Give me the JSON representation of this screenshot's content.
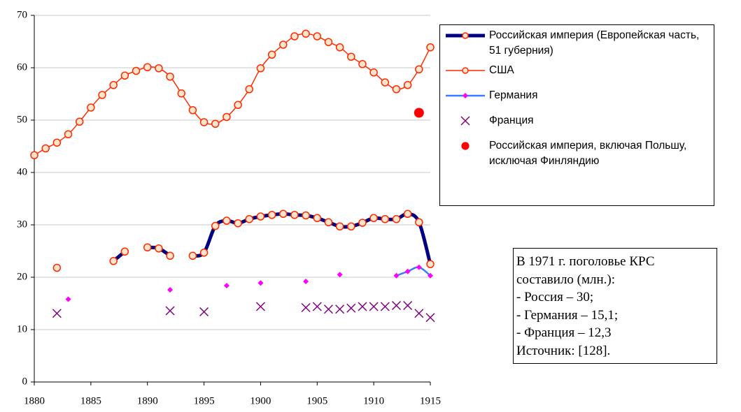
{
  "chart_data": {
    "type": "line",
    "x": [
      1880,
      1881,
      1882,
      1883,
      1884,
      1885,
      1886,
      1887,
      1888,
      1889,
      1890,
      1891,
      1892,
      1893,
      1894,
      1895,
      1896,
      1897,
      1898,
      1899,
      1900,
      1901,
      1902,
      1903,
      1904,
      1905,
      1906,
      1907,
      1908,
      1909,
      1910,
      1911,
      1912,
      1913,
      1914,
      1915
    ],
    "xlim": [
      1880,
      1915
    ],
    "xticks": [
      1880,
      1885,
      1890,
      1895,
      1900,
      1905,
      1910,
      1915
    ],
    "ylim": [
      0,
      70
    ],
    "yticks": [
      0,
      10,
      20,
      30,
      40,
      50,
      60,
      70
    ],
    "grid": true,
    "series": [
      {
        "name": "Российская империя (Европейская часть, 51 губерния)",
        "color": "#000080",
        "marker": "circle",
        "marker_color": "#ff2a00",
        "line_width": 5,
        "line": true,
        "values": [
          null,
          null,
          21.8,
          null,
          null,
          null,
          null,
          23.1,
          24.9,
          null,
          25.7,
          25.5,
          24.1,
          null,
          24.1,
          24.7,
          29.8,
          30.8,
          30.3,
          31.1,
          31.6,
          31.9,
          32.1,
          31.9,
          31.8,
          31.3,
          30.5,
          29.7,
          29.7,
          30.4,
          31.3,
          31.1,
          31.1,
          32.1,
          30.5,
          22.5
        ]
      },
      {
        "name": "США",
        "color": "#ff2a00",
        "marker": "circle",
        "marker_color": "#ff2a00",
        "line_width": 1.5,
        "line": true,
        "values": [
          43.3,
          44.6,
          45.7,
          47.3,
          49.7,
          52.4,
          54.8,
          56.7,
          58.5,
          59.4,
          60.1,
          59.9,
          58.3,
          55.1,
          51.9,
          49.6,
          49.3,
          50.6,
          52.9,
          55.9,
          59.9,
          62.5,
          64.4,
          66.0,
          66.5,
          66.0,
          64.9,
          63.9,
          62.1,
          60.7,
          59.1,
          57.2,
          55.9,
          56.7,
          59.7,
          63.9
        ]
      },
      {
        "name": "Германия",
        "color": "#3a7bff",
        "marker": "diamond",
        "marker_color": "#ff00ff",
        "line_width": 2.5,
        "line": true,
        "values": [
          null,
          null,
          null,
          15.8,
          null,
          null,
          null,
          null,
          null,
          null,
          null,
          null,
          17.6,
          null,
          null,
          null,
          null,
          18.4,
          null,
          null,
          18.9,
          null,
          null,
          null,
          19.2,
          null,
          null,
          20.5,
          null,
          null,
          null,
          null,
          20.3,
          21.1,
          21.9,
          20.3
        ]
      },
      {
        "name": "Франция",
        "color": "#800080",
        "marker": "x",
        "marker_color": "#800080",
        "line_width": 1.5,
        "line": false,
        "values": [
          null,
          null,
          13.1,
          null,
          null,
          null,
          null,
          null,
          null,
          null,
          null,
          null,
          13.6,
          null,
          null,
          13.4,
          null,
          null,
          null,
          null,
          14.4,
          null,
          null,
          null,
          14.2,
          14.4,
          13.9,
          13.9,
          14.1,
          14.4,
          14.4,
          14.4,
          14.6,
          14.6,
          13.1,
          12.3
        ]
      },
      {
        "name": "Российская империя, включая Польшу, исключая Финляндию",
        "color": "#ff0000",
        "marker": "dot",
        "marker_color": "#ff0000",
        "line_width": 0,
        "line": false,
        "values": [
          null,
          null,
          null,
          null,
          null,
          null,
          null,
          null,
          null,
          null,
          null,
          null,
          null,
          null,
          null,
          null,
          null,
          null,
          null,
          null,
          null,
          null,
          null,
          null,
          null,
          null,
          null,
          null,
          null,
          null,
          null,
          null,
          null,
          null,
          51.4,
          null
        ]
      }
    ],
    "annotation": [
      "В 1971 г. поголовье КРС",
      "составило (млн.):",
      "- Россия – 30;",
      "- Германия – 15,1;",
      "- Франция – 12,3",
      "Источник: [128]."
    ]
  }
}
